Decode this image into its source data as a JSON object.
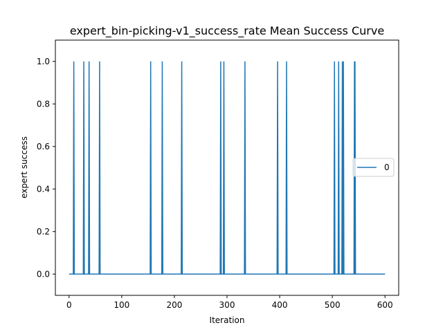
{
  "chart_data": {
    "type": "line",
    "title": "expert_bin-picking-v1_success_rate Mean Success Curve",
    "xlabel": "Iteration",
    "ylabel": "expert success",
    "xlim": [
      -26,
      626
    ],
    "ylim": [
      -0.1,
      1.1
    ],
    "xticks": [
      0,
      100,
      200,
      300,
      400,
      500,
      600
    ],
    "yticks": [
      0.0,
      0.2,
      0.4,
      0.6,
      0.8,
      1.0
    ],
    "xtick_labels": [
      "0",
      "100",
      "200",
      "300",
      "400",
      "500",
      "600"
    ],
    "ytick_labels": [
      "0.0",
      "0.2",
      "0.4",
      "0.6",
      "0.8",
      "1.0"
    ],
    "grid": false,
    "legend_position": "center-right",
    "series": [
      {
        "name": "0",
        "color": "#1f77b4",
        "x_range": [
          0,
          600
        ],
        "baseline": 0.0,
        "success_iterations": [
          9,
          28,
          38,
          58,
          155,
          177,
          214,
          288,
          294,
          334,
          396,
          413,
          504,
          512,
          519,
          521,
          542,
          543
        ]
      }
    ]
  }
}
